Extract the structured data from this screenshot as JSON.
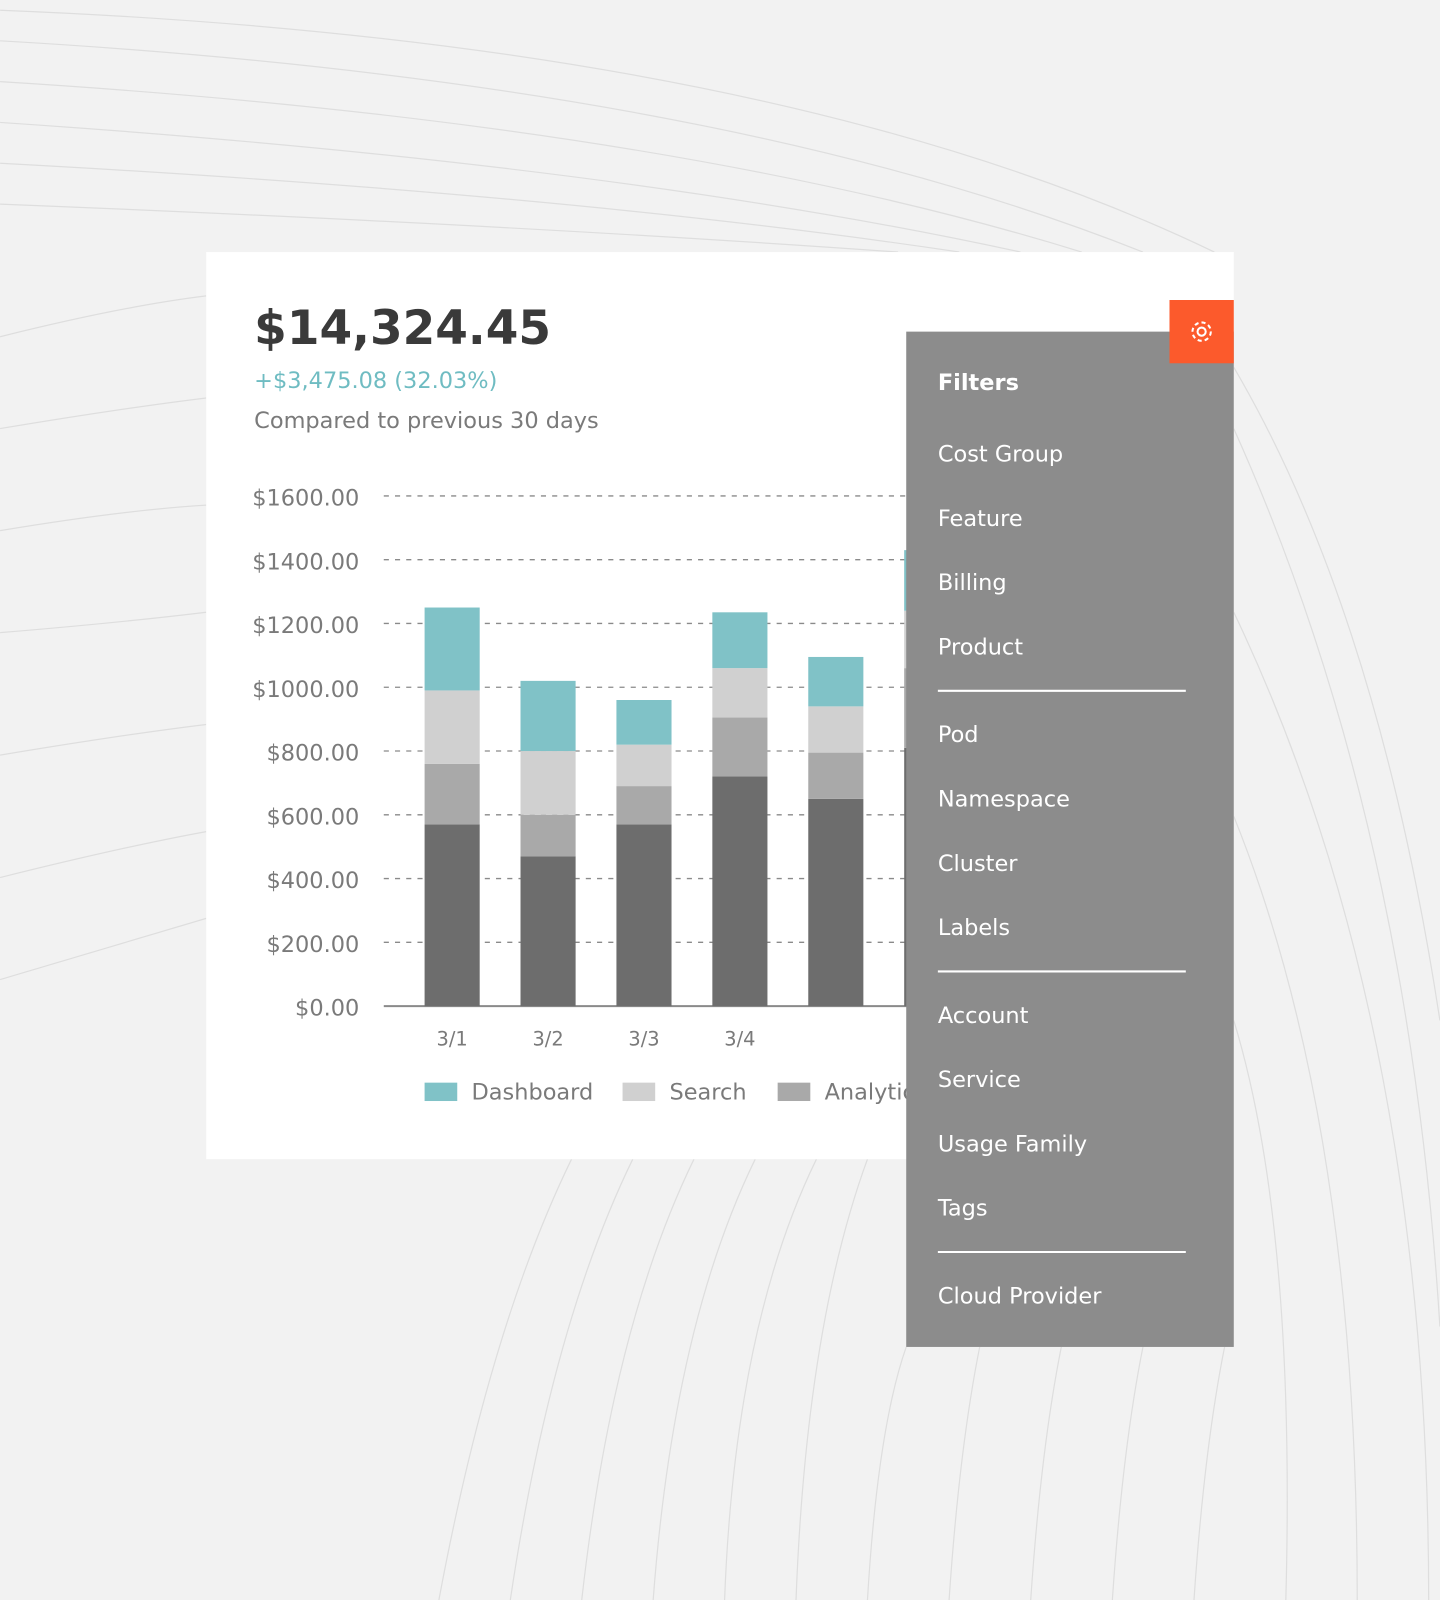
{
  "header": {
    "total": "$14,324.45",
    "change": "+$3,475.08 (32.03%)",
    "comparison": "Compared to previous 30 days"
  },
  "chart_data": {
    "type": "stacked-bar",
    "categories": [
      "3/1",
      "3/2",
      "3/3",
      "3/4",
      null,
      null
    ],
    "series": [
      {
        "color": "#6d6d6d",
        "values": [
          570,
          470,
          570,
          720,
          650,
          810
        ]
      },
      {
        "name": "Analytics",
        "color": "#a9a9a9",
        "values": [
          190,
          130,
          120,
          185,
          145,
          250
        ]
      },
      {
        "name": "Search",
        "color": "#d0d0d0",
        "values": [
          230,
          200,
          130,
          155,
          145,
          180
        ]
      },
      {
        "name": "Dashboard",
        "color": "#80c2c7",
        "values": [
          260,
          220,
          140,
          175,
          155,
          190
        ]
      }
    ],
    "ylim": [
      0,
      1600
    ],
    "yticks": [
      {
        "value": 0,
        "label": "$0.00"
      },
      {
        "value": 200,
        "label": "$200.00"
      },
      {
        "value": 400,
        "label": "$400.00"
      },
      {
        "value": 600,
        "label": "$600.00"
      },
      {
        "value": 800,
        "label": "$800.00"
      },
      {
        "value": 1000,
        "label": "$1000.00"
      },
      {
        "value": 1200,
        "label": "$1200.00"
      },
      {
        "value": 1400,
        "label": "$1400.00"
      },
      {
        "value": 1600,
        "label": "$1600.00"
      }
    ],
    "grid": true
  },
  "filters": {
    "title": "Filters",
    "groups": [
      [
        "Cost Group",
        "Feature",
        "Billing",
        "Product"
      ],
      [
        "Pod",
        "Namespace",
        "Cluster",
        "Labels"
      ],
      [
        "Account",
        "Service",
        "Usage Family",
        "Tags"
      ],
      [
        "Cloud Provider"
      ]
    ]
  }
}
